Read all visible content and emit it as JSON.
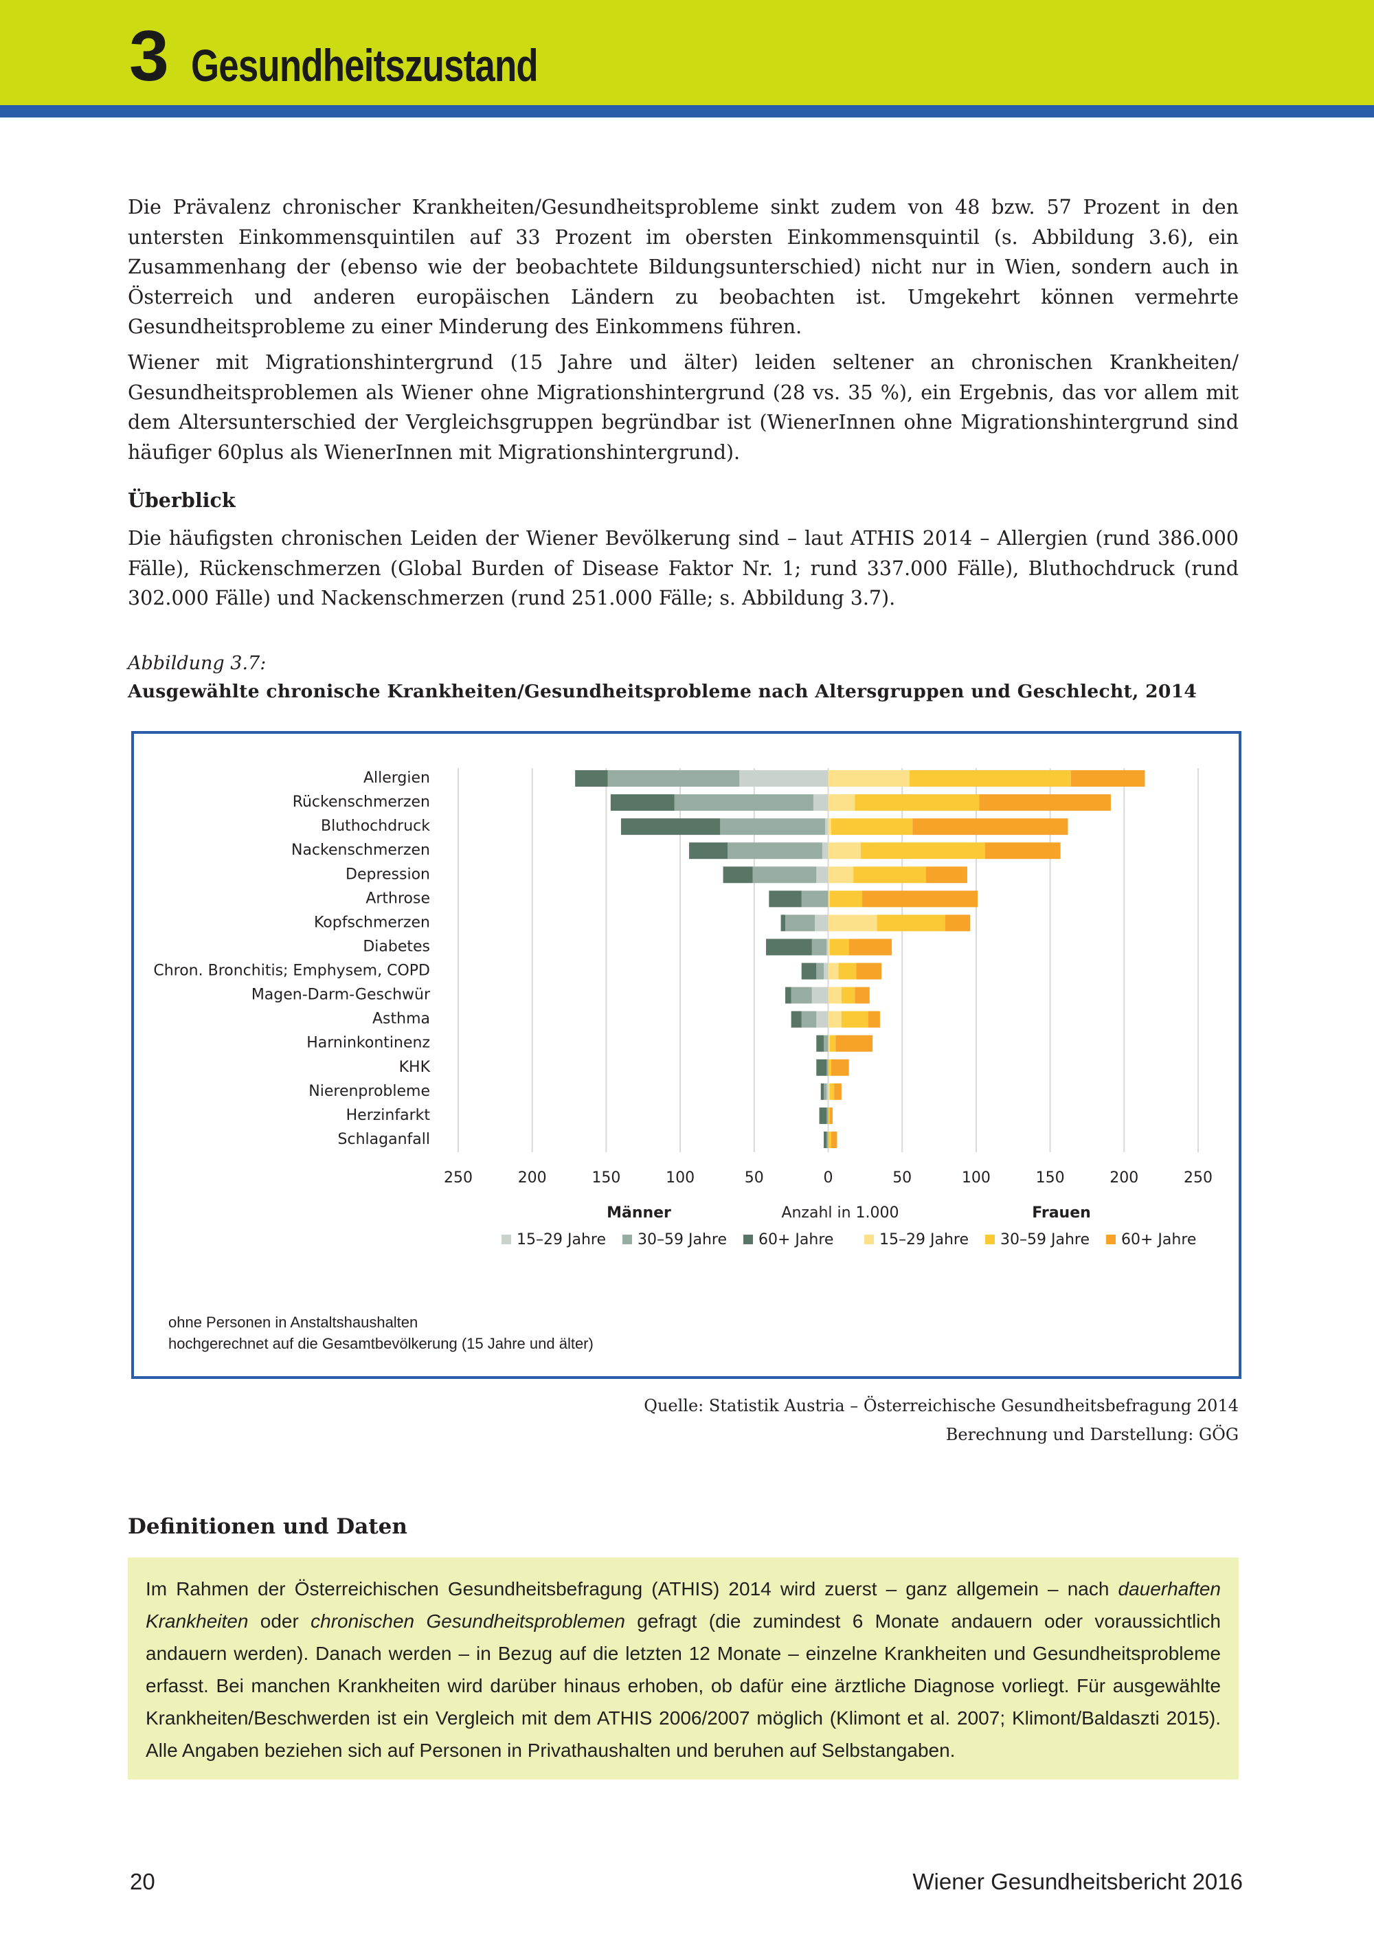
{
  "header": {
    "number": "3",
    "title": "Gesundheitszustand"
  },
  "paragraphs": [
    "Die Prävalenz chronischer Krankheiten/Gesundheitsprobleme sinkt zudem von 48 bzw. 57 Prozent in den untersten Einkommensquintilen auf 33 Prozent im obersten Einkommensquintil (s. Abbildung 3.6), ein Zusammenhang der (ebenso wie der beobachtete Bildungsunterschied) nicht nur in Wien, sondern auch in Österreich und anderen europäischen Ländern zu beobachten ist. Umgekehrt können vermehrte Gesundheitsprobleme zu einer Minderung des Einkommens führen.",
    "Wiener mit Migrationshintergrund (15 Jahre und älter) leiden seltener an chronischen Krankheiten/ Gesundheitsproblemen als Wiener ohne Migrationshintergrund (28 vs. 35 %), ein Ergebnis, das vor allem mit dem Altersunterschied der Vergleichsgruppen begründbar ist (WienerInnen ohne Migrationshintergrund sind häufiger 60plus als WienerInnen mit Migrationshintergrund)."
  ],
  "section_heading": "Überblick",
  "overview_paragraph": "Die häufigsten chronischen Leiden der Wiener Bevölkerung sind – laut ATHIS 2014 – Allergien (rund 386.000 Fälle), Rückenschmerzen (Global Burden of Disease Faktor Nr. 1; rund 337.000 Fälle), Bluthochdruck (rund 302.000 Fälle) und Nackenschmerzen (rund 251.000 Fälle; s. Abbildung 3.7).",
  "figure": {
    "label": "Abbildung 3.7:",
    "caption": "Ausgewählte chronische Krankheiten/Gesundheitsprobleme nach Altersgruppen und Geschlecht, 2014",
    "notes": [
      "ohne Personen in Anstaltshaushalten",
      "hochgerechnet auf die Gesamtbevölkerung (15 Jahre und älter)"
    ],
    "source": [
      "Quelle: Statistik Austria – Österreichische Gesundheitsbefragung 2014",
      "Berechnung und Darstellung: GÖG"
    ]
  },
  "chart_data": {
    "type": "bar",
    "orientation": "horizontal",
    "stacked": true,
    "grid": true,
    "xlabel": "Anzahl in 1.000",
    "group_labels": [
      "Männer",
      "Frauen"
    ],
    "categories": [
      "Allergien",
      "Rückenschmerzen",
      "Bluthochdruck",
      "Nackenschmerzen",
      "Depression",
      "Arthrose",
      "Kopfschmerzen",
      "Diabetes",
      "Chron. Bronchitis; Emphysem, COPD",
      "Magen-Darm-Geschwür",
      "Asthma",
      "Harninkontinenz",
      "KHK",
      "Nierenprobleme",
      "Herzinfarkt",
      "Schlaganfall"
    ],
    "series": [
      {
        "name": "15–29 Jahre",
        "color": "#c9d2cd",
        "values": [
          -60,
          -10,
          -2,
          -4,
          -8,
          0,
          -9,
          -1,
          -3,
          -11,
          -8,
          0,
          0,
          -1,
          0,
          0
        ]
      },
      {
        "name": "30–59 Jahre",
        "color": "#98ada2",
        "values": [
          -89,
          -94,
          -71,
          -64,
          -43,
          -18,
          -20,
          -10,
          -5,
          -14,
          -10,
          -3,
          -1,
          -2,
          -1,
          -1
        ]
      },
      {
        "name": "60+ Jahre",
        "color": "#587565",
        "values": [
          -22,
          -43,
          -67,
          -26,
          -20,
          -22,
          -3,
          -31,
          -10,
          -4,
          -7,
          -5,
          -7,
          -2,
          -5,
          -2
        ]
      },
      {
        "name": "15–29 Jahre",
        "color": "#fde18a",
        "values": [
          55,
          18,
          2,
          22,
          17,
          1,
          33,
          1,
          7,
          9,
          9,
          1,
          0,
          1,
          0,
          0
        ]
      },
      {
        "name": "30–59 Jahre",
        "color": "#fbc936",
        "values": [
          109,
          84,
          55,
          84,
          49,
          22,
          46,
          13,
          12,
          9,
          18,
          4,
          2,
          3,
          1,
          2
        ]
      },
      {
        "name": "60+ Jahre",
        "color": "#f7a32a",
        "values": [
          50,
          89,
          105,
          51,
          28,
          78,
          17,
          29,
          17,
          10,
          8,
          25,
          12,
          5,
          2,
          4
        ]
      }
    ],
    "xlim": [
      -250,
      250
    ],
    "xticks": [
      {
        "value": -250,
        "label": "250"
      },
      {
        "value": -200,
        "label": "200"
      },
      {
        "value": -150,
        "label": "150"
      },
      {
        "value": -100,
        "label": "100"
      },
      {
        "value": -50,
        "label": "50"
      },
      0,
      50,
      100,
      150,
      200,
      250
    ]
  },
  "definitions": {
    "heading": "Definitionen und Daten",
    "parts": [
      {
        "text": "Im Rahmen der Österreichischen Gesundheitsbefragung (ATHIS) 2014 wird zuerst – ganz allgemein – nach "
      },
      {
        "em": "dauerhaften Krankheiten"
      },
      {
        "text": " oder "
      },
      {
        "em": "chronischen Gesundheitsproblemen"
      },
      {
        "text": " gefragt (die zumindest 6 Monate andauern oder voraussichtlich andauern werden). Danach werden – in Bezug auf die letzten 12 Monate – einzelne Krankheiten und Gesundheitsprobleme erfasst. Bei manchen Krankheiten wird darüber hinaus erhoben, ob dafür eine ärztliche Diagnose vorliegt. Für ausgewählte Krankheiten/Beschwerden ist ein Vergleich mit dem ATHIS 2006/2007 möglich (Klimont et al. 2007; Klimont/Baldaszti 2015). Alle Angaben beziehen sich auf Personen in Privathaushalten und beruhen auf Selbstangaben."
      }
    ]
  },
  "footer": {
    "page": "20",
    "publication": "Wiener Gesundheitsbericht 2016"
  }
}
